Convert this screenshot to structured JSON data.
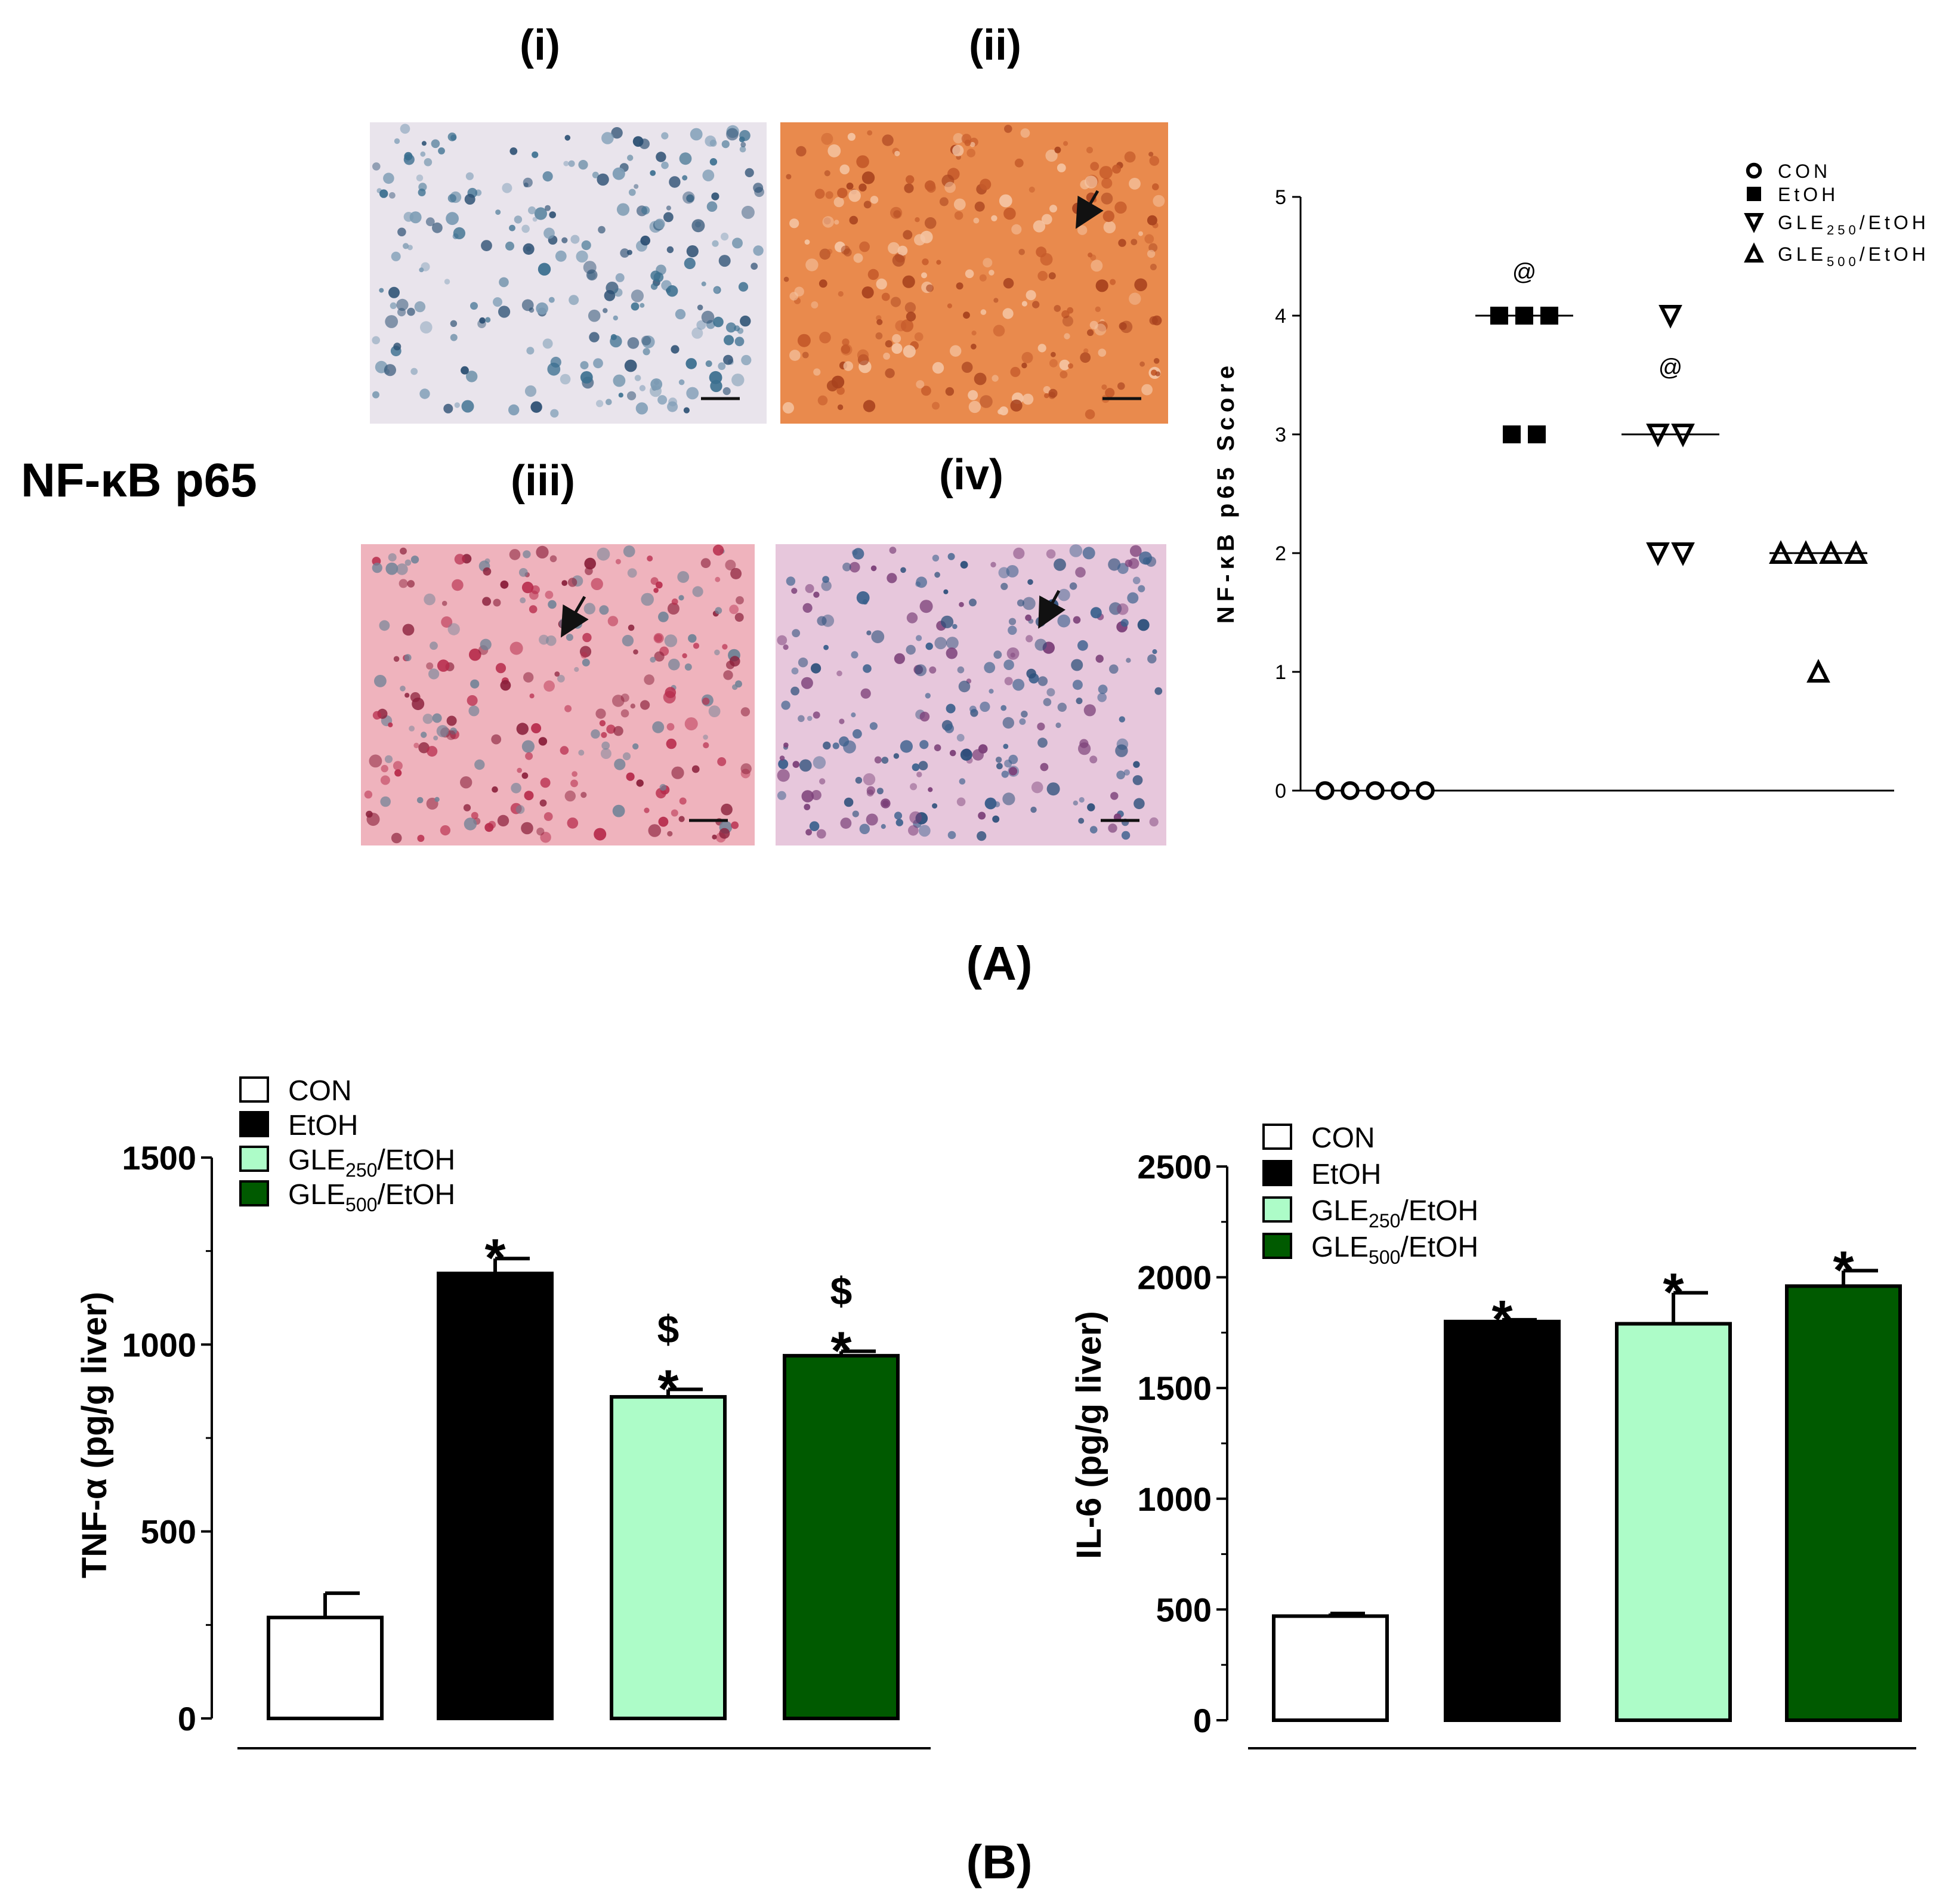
{
  "panel_a": {
    "row_label": "NF-κB p65",
    "micrographs": [
      {
        "label": "(i)",
        "base_color": "#e9e4ec",
        "speck_colors": [
          "#3b6f8f",
          "#2b4f72",
          "#7d9cb5"
        ]
      },
      {
        "label": "(ii)",
        "base_color": "#e98a4d",
        "speck_colors": [
          "#a8421e",
          "#c55a2a",
          "#f5c6a5"
        ]
      },
      {
        "label": "(iii)",
        "base_color": "#efb3bd",
        "speck_colors": [
          "#b72b4b",
          "#8a1f3a",
          "#6e8296"
        ]
      },
      {
        "label": "(iv)",
        "base_color": "#e7c7dc",
        "speck_colors": [
          "#3a5f8c",
          "#7b3f78",
          "#2c4f7a"
        ]
      }
    ],
    "caption": "(A)"
  },
  "panel_b_caption": "(B)",
  "chart_data": [
    {
      "type": "scatter",
      "title": "",
      "xlabel": "",
      "ylabel": "NF-κB p65 Score",
      "ylim": [
        0,
        5
      ],
      "yticks": [
        "0",
        "1",
        "2",
        "3",
        "4",
        "5"
      ],
      "legend_position": "top-right",
      "series": [
        {
          "name": "CON",
          "marker": "open-circle",
          "values": [
            0,
            0,
            0,
            0,
            0
          ],
          "median": null,
          "annotation": ""
        },
        {
          "name": "EtOH",
          "marker": "filled-square",
          "values": [
            4,
            4,
            4,
            3,
            3
          ],
          "median": 4,
          "annotation": "@"
        },
        {
          "name": "GLE250/EtOH",
          "name_main": "GLE",
          "name_sub": "250",
          "name_tail": "/EtOH",
          "marker": "down-triangle",
          "values": [
            4,
            3,
            3,
            2,
            2
          ],
          "median": 3,
          "annotation": "@"
        },
        {
          "name": "GLE500/EtOH",
          "name_main": "GLE",
          "name_sub": "500",
          "name_tail": "/EtOH",
          "marker": "up-triangle",
          "values": [
            2,
            2,
            2,
            2,
            1
          ],
          "median": 2,
          "annotation": ""
        }
      ]
    },
    {
      "type": "bar",
      "title": "",
      "xlabel": "",
      "ylabel": "TNF-α (pg/g liver)",
      "ylim": [
        0,
        1500
      ],
      "yticks": [
        "0",
        "500",
        "1000",
        "1500"
      ],
      "legend_position": "top-left",
      "categories": [
        "CON",
        "EtOH",
        "GLE250/EtOH",
        "GLE500/EtOH"
      ],
      "legend": [
        {
          "main": "CON",
          "sub": "",
          "tail": ""
        },
        {
          "main": "EtOH",
          "sub": "",
          "tail": ""
        },
        {
          "main": "GLE",
          "sub": "250",
          "tail": "/EtOH"
        },
        {
          "main": "GLE",
          "sub": "500",
          "tail": "/EtOH"
        }
      ],
      "colors": [
        "#ffffff",
        "#000000",
        "#adfcc8",
        "#005a00"
      ],
      "values": [
        270,
        1190,
        860,
        970
      ],
      "errors": [
        65,
        40,
        20,
        12
      ],
      "annotations": [
        [],
        [
          "*"
        ],
        [
          "$",
          "*"
        ],
        [
          "$",
          "*"
        ]
      ]
    },
    {
      "type": "bar",
      "title": "",
      "xlabel": "",
      "ylabel": "IL-6 (pg/g liver)",
      "ylim": [
        0,
        2500
      ],
      "yticks": [
        "0",
        "500",
        "1000",
        "1500",
        "2000",
        "2500"
      ],
      "legend_position": "top-left",
      "categories": [
        "CON",
        "EtOH",
        "GLE250/EtOH",
        "GLE500/EtOH"
      ],
      "legend": [
        {
          "main": "CON",
          "sub": "",
          "tail": ""
        },
        {
          "main": "EtOH",
          "sub": "",
          "tail": ""
        },
        {
          "main": "GLE",
          "sub": "250",
          "tail": "/EtOH"
        },
        {
          "main": "GLE",
          "sub": "500",
          "tail": "/EtOH"
        }
      ],
      "colors": [
        "#ffffff",
        "#000000",
        "#adfcc8",
        "#005a00"
      ],
      "values": [
        470,
        1800,
        1790,
        1960
      ],
      "errors": [
        12,
        8,
        140,
        70
      ],
      "annotations": [
        [],
        [
          "*"
        ],
        [
          "*"
        ],
        [
          "*"
        ]
      ]
    }
  ]
}
